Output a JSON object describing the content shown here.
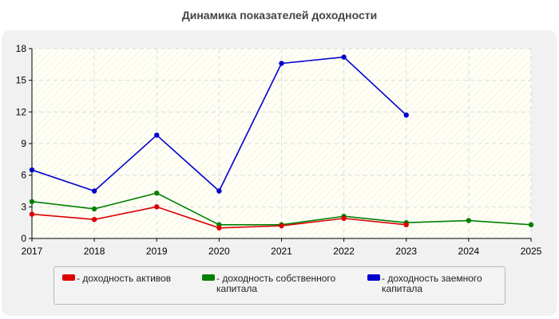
{
  "chart_data": {
    "type": "line",
    "title": "Динамика показателей доходности",
    "x": [
      "2017",
      "2018",
      "2019",
      "2020",
      "2021",
      "2022",
      "2023",
      "2024",
      "2025"
    ],
    "ylim": [
      0,
      18
    ],
    "yticks": [
      "0",
      "3",
      "6",
      "9",
      "12",
      "15",
      "18"
    ],
    "grid": true,
    "legend_position": "bottom",
    "series": [
      {
        "name": "- доходность активов",
        "color": "#dd0000",
        "values": [
          2.3,
          1.8,
          3.0,
          1.0,
          1.2,
          1.9,
          1.3,
          null,
          null
        ]
      },
      {
        "name": "- доходность собственного капитала",
        "color": "#008000",
        "values": [
          3.5,
          2.8,
          4.3,
          1.3,
          1.3,
          2.1,
          1.5,
          1.7,
          1.3
        ]
      },
      {
        "name": "- доходность заемного капитала",
        "color": "#0000cc",
        "values": [
          6.5,
          4.5,
          9.8,
          4.5,
          16.6,
          17.2,
          11.7,
          null,
          null
        ]
      }
    ]
  }
}
